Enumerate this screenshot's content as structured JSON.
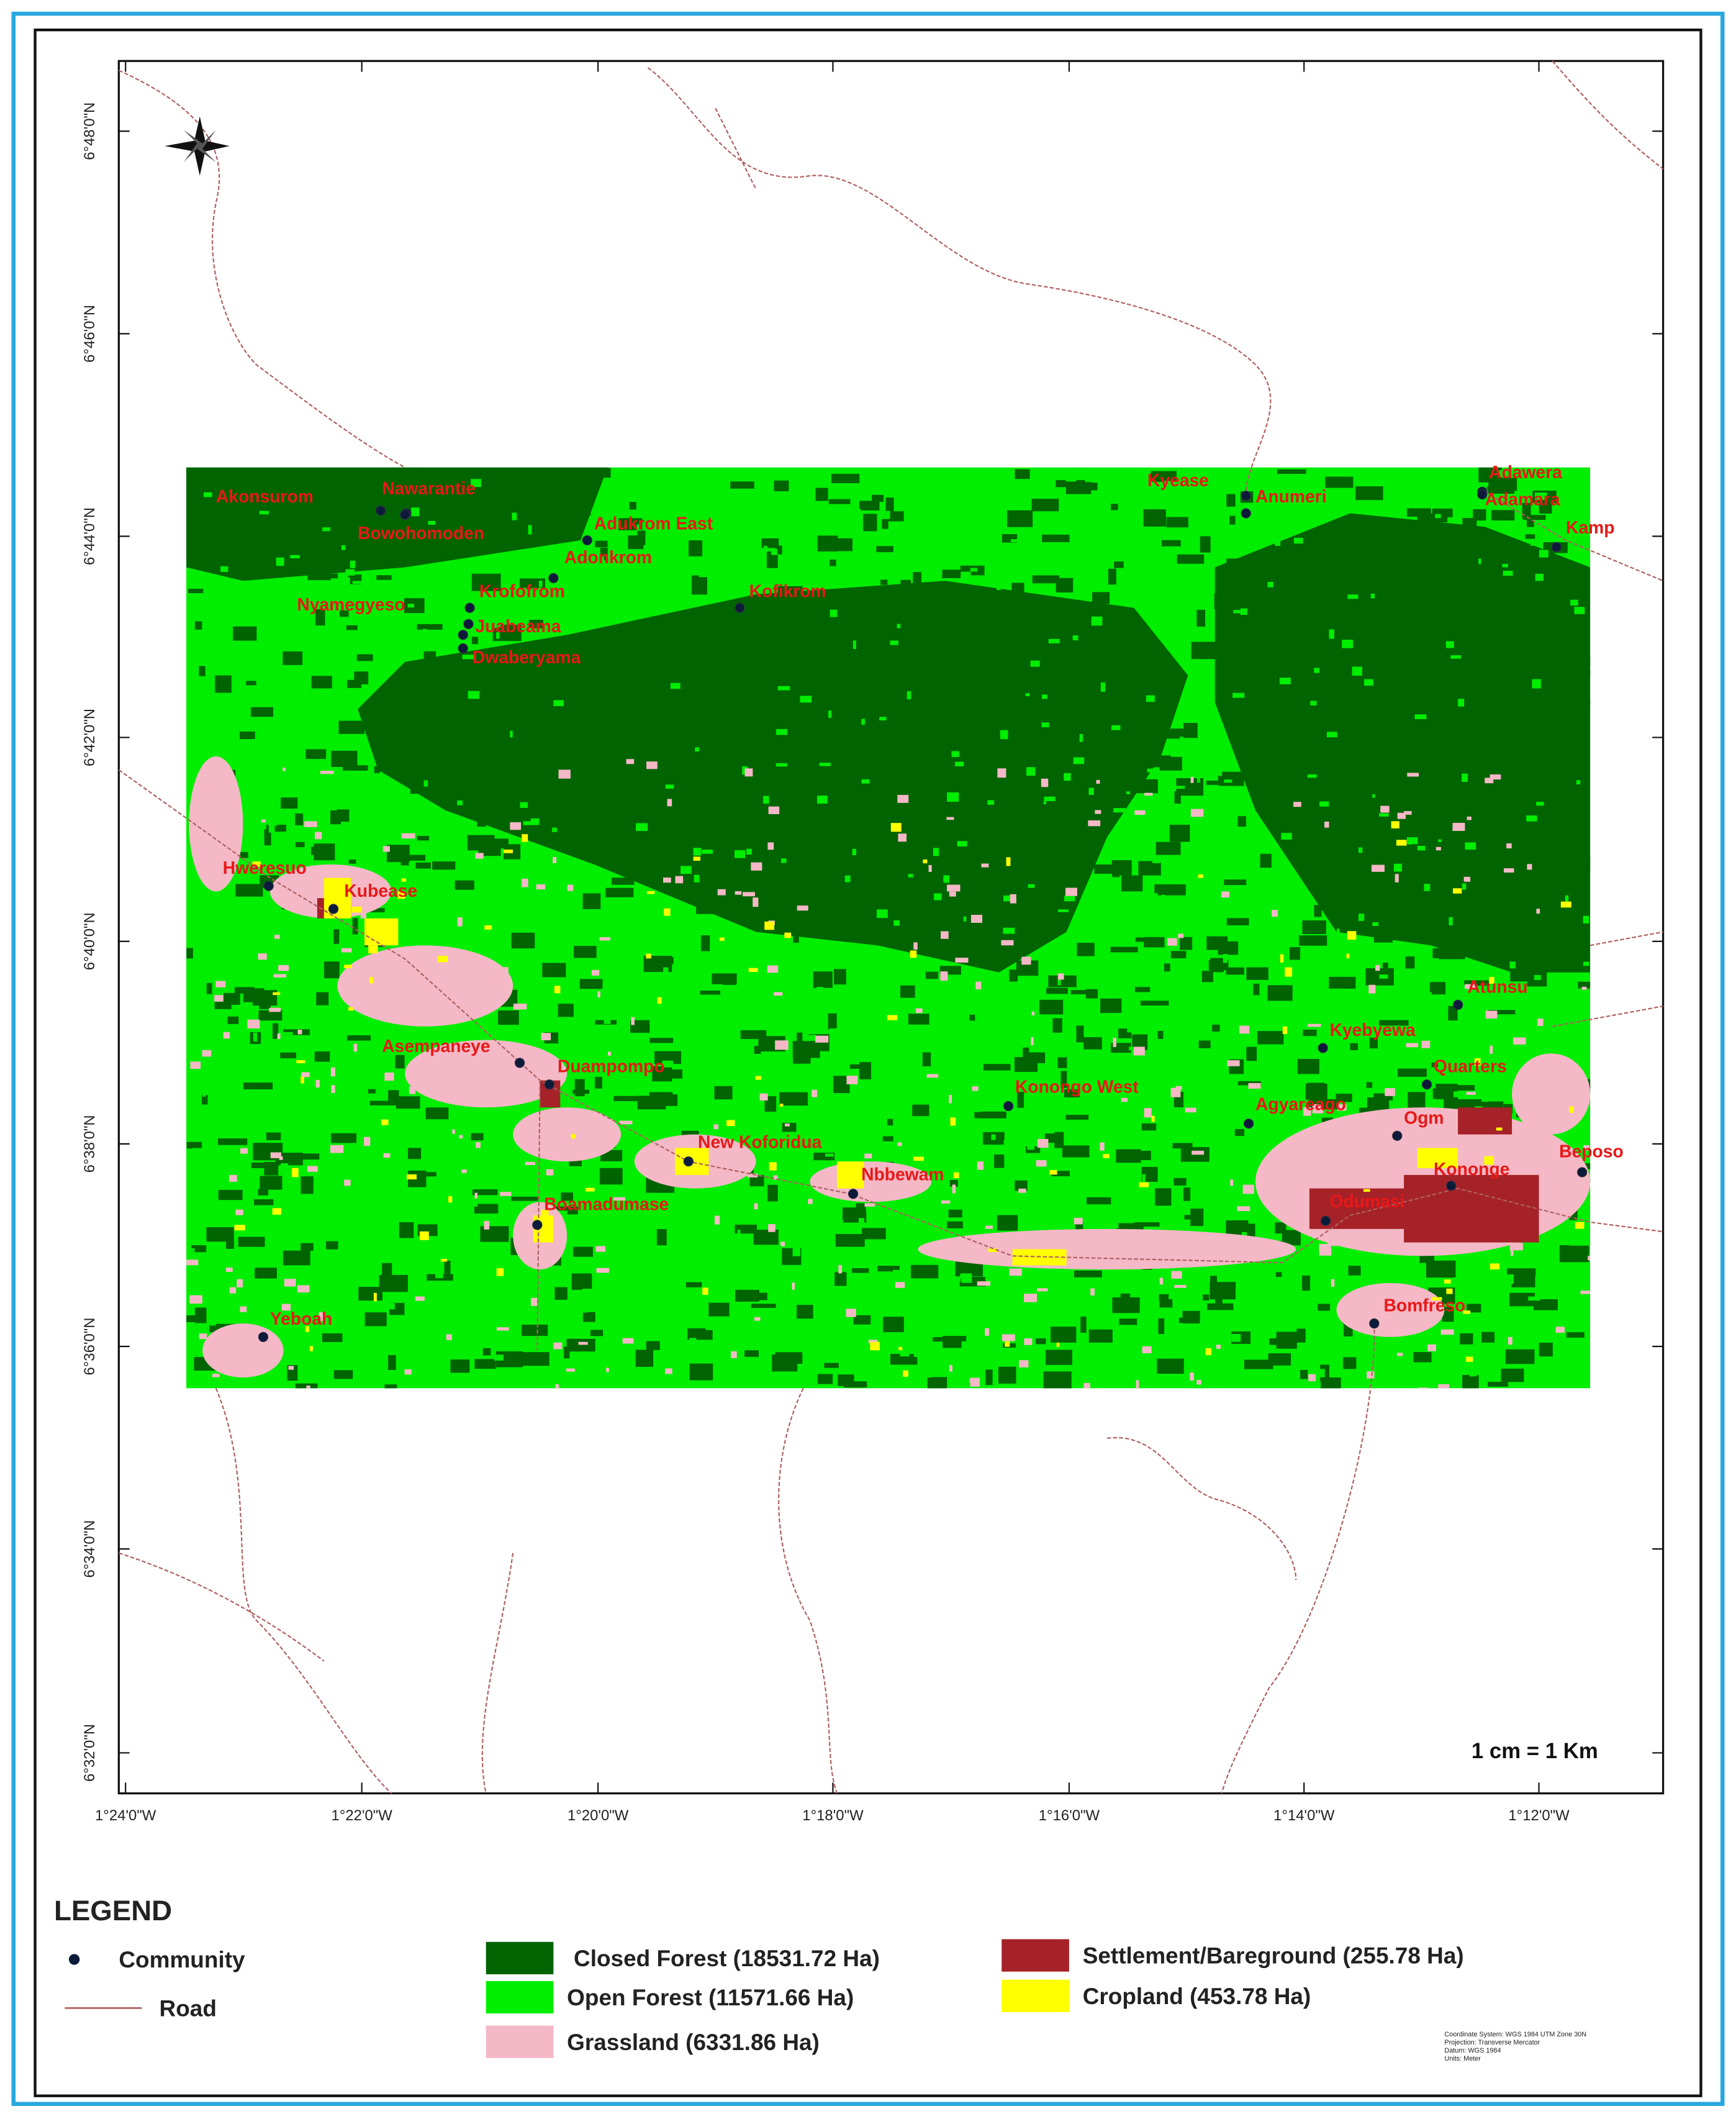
{
  "map": {
    "lat_ticks": [
      "6°48'0\"N",
      "6°46'0\"N",
      "6°44'0\"N",
      "6°42'0\"N",
      "6°40'0\"N",
      "6°38'0\"N",
      "6°36'0\"N",
      "6°34'0\"N",
      "6°32'0\"N"
    ],
    "lon_ticks": [
      "1°24'0\"W",
      "1°22'0\"W",
      "1°20'0\"W",
      "1°18'0\"W",
      "1°16'0\"W",
      "1°14'0\"W",
      "1°12'0\"W"
    ],
    "communities": [
      "Akonsurom",
      "Nawarantie",
      "Bowohomoden",
      "Adukrom East",
      "Adonkrom",
      "Krofofrom",
      "Nyamegyeso",
      "Juabeama",
      "Dwaberyama",
      "Kofikrom",
      "Kyease",
      "Anumeri",
      "Adawera",
      "Adamara",
      "Kamp",
      "Hweresuo",
      "Kubease",
      "Asempaneye",
      "Duampompo",
      "New Koforidua",
      "Nbbewam",
      "Boamadumase",
      "Yeboah",
      "Konongo West",
      "Agyareago",
      "Ogm",
      "Kononge",
      "Beposo",
      "Odumasi",
      "Bomfreso",
      "Kyebyewa",
      "Quarters",
      "Atunsu"
    ],
    "scale": "1 cm = 1 Km",
    "legend": {
      "title": "LEGEND",
      "community": "Community",
      "road": "Road",
      "classes": [
        {
          "name": "Closed Forest (18531.72 Ha)",
          "color": "#006400"
        },
        {
          "name": "Open Forest (11571.66 Ha)",
          "color": "#00ee00"
        },
        {
          "name": "Grassland (6331.86 Ha)",
          "color": "#f4b8c6"
        },
        {
          "name": "Settlement/Bareground (255.78 Ha)",
          "color": "#a52228"
        },
        {
          "name": "Cropland (453.78 Ha)",
          "color": "#ffff00"
        }
      ]
    },
    "metadata": [
      "Coordinate System: WGS 1984 UTM Zone 30N",
      "Projection: Transverse Mercator",
      "Datum: WGS 1984",
      "Units: Meter"
    ]
  }
}
